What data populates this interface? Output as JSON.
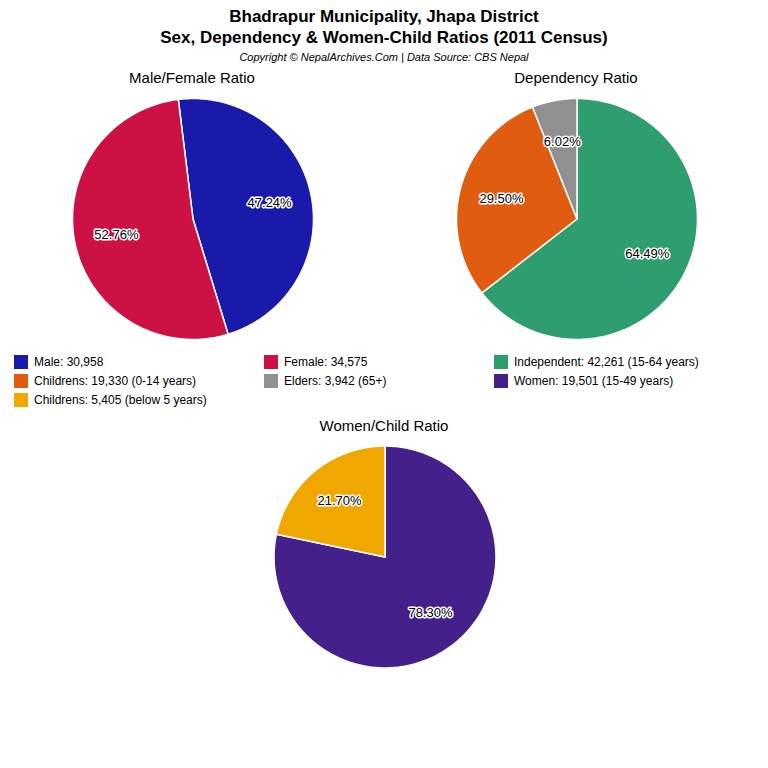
{
  "title": "Bhadrapur Municipality, Jhapa District",
  "subtitle": "Sex, Dependency & Women-Child Ratios (2011 Census)",
  "annotations": [
    "Copyright © NepalArchives.Com | Data Source: CBS Nepal"
  ],
  "chart_data": [
    {
      "type": "pie",
      "title": "Male/Female Ratio",
      "categories": [
        "Male: 30,958",
        "Female: 34,575"
      ],
      "values": [
        47.24,
        52.76
      ],
      "value_labels": [
        "47.24%",
        "52.76%"
      ],
      "colors": [
        "#1a1aaa",
        "#cc1144"
      ],
      "data_labels": true
    },
    {
      "type": "pie",
      "title": "Dependency Ratio",
      "categories": [
        "Independent: 42,261 (15-64 years)",
        "Childrens: 19,330 (0-14 years)",
        "Elders: 3,942 (65+)"
      ],
      "values": [
        64.49,
        29.5,
        6.02
      ],
      "value_labels": [
        "64.49%",
        "29.50%",
        "6.02%"
      ],
      "colors": [
        "#2e9e6e",
        "#e05c10",
        "#909090"
      ],
      "data_labels": true
    },
    {
      "type": "pie",
      "title": "Women/Child Ratio",
      "categories": [
        "Women: 19,501 (15-49 years)",
        "Childrens: 5,405 (below 5 years)"
      ],
      "values": [
        78.3,
        21.7
      ],
      "value_labels": [
        "78.30%",
        "21.70%"
      ],
      "colors": [
        "#44208a",
        "#f0a800"
      ],
      "data_labels": true
    }
  ]
}
